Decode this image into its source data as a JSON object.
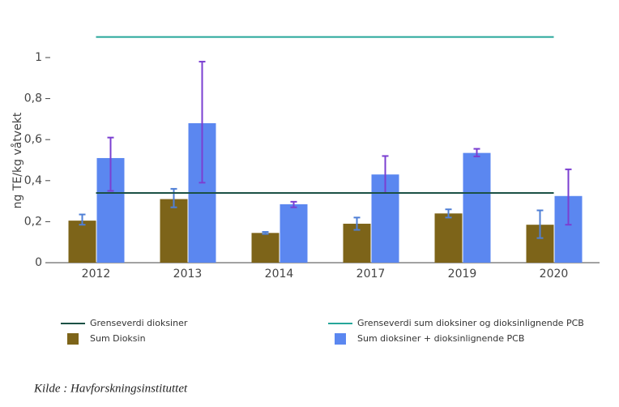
{
  "chart_data": {
    "type": "bar",
    "y_label": "ng TE/kg våtvekt",
    "categories": [
      "2012",
      "2013",
      "2014",
      "2017",
      "2019",
      "2020"
    ],
    "series": [
      {
        "name": "Sum Dioksin",
        "color": "#7d6419",
        "error_color": "#4f7fd6",
        "values": [
          0.205,
          0.31,
          0.145,
          0.19,
          0.24,
          0.185
        ],
        "error_plus": [
          0.03,
          0.05,
          0.005,
          0.03,
          0.02,
          0.07
        ],
        "error_minus": [
          0.02,
          0.04,
          0.005,
          0.03,
          0.02,
          0.065
        ]
      },
      {
        "name": "Sum dioksiner + dioksinlignende PCB",
        "color": "#5b87f0",
        "error_color": "#7b3fd1",
        "values": [
          0.51,
          0.68,
          0.285,
          0.43,
          0.535,
          0.325
        ],
        "error_plus": [
          0.1,
          0.3,
          0.012,
          0.09,
          0.02,
          0.13
        ],
        "error_minus": [
          0.16,
          0.29,
          0.015,
          0.09,
          0.017,
          0.14
        ]
      }
    ],
    "reference_lines": [
      {
        "name": "Grenseverdi dioksiner",
        "color": "#1b5145",
        "value": 0.34
      },
      {
        "name": "Grenseverdi sum dioksiner og dioksinlignende PCB",
        "color": "#26a69a",
        "value": 1.1
      }
    ],
    "ylim": [
      0,
      1.16
    ],
    "yticks": [
      0,
      {
        "value": 0.2,
        "label": "0,2"
      },
      {
        "value": 0.4,
        "label": "0,4"
      },
      {
        "value": 0.6,
        "label": "0,6"
      },
      {
        "value": 0.8,
        "label": "0,8"
      },
      1
    ],
    "source": "Kilde : Havforskningsinstituttet"
  }
}
